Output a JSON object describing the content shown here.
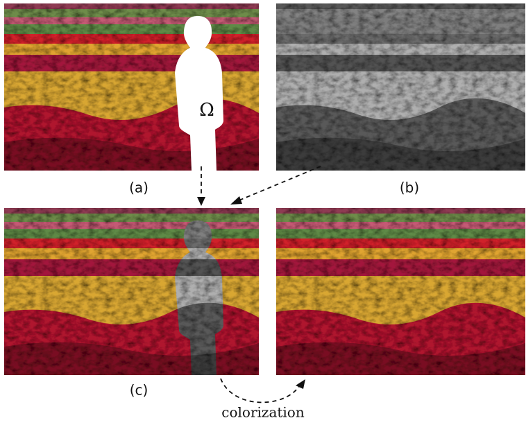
{
  "panels": [
    {
      "label": "(a)"
    },
    {
      "label": "(b)"
    },
    {
      "label": "(c)"
    }
  ],
  "mask_label": "Ω",
  "arrow_label": "colorization"
}
